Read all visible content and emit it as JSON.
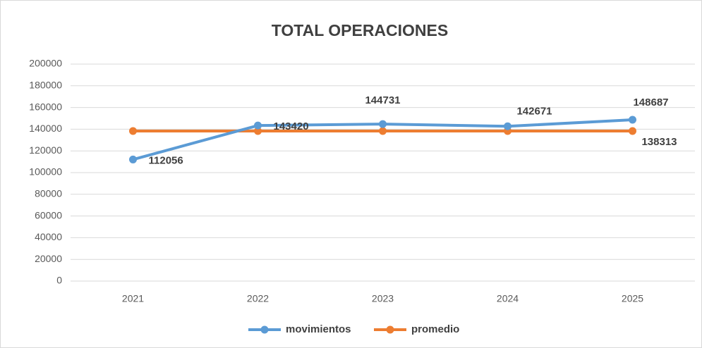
{
  "chart_data": {
    "type": "line",
    "title": "TOTAL OPERACIONES",
    "categories": [
      "2021",
      "2022",
      "2023",
      "2024",
      "2025"
    ],
    "series": [
      {
        "name": "movimientos",
        "color": "#5b9bd5",
        "values": [
          112056,
          143420,
          144731,
          142671,
          148687
        ]
      },
      {
        "name": "promedio",
        "color": "#ed7d31",
        "values": [
          138313,
          138313,
          138313,
          138313,
          138313
        ],
        "value_labels": [
          null,
          null,
          null,
          null,
          "138313"
        ]
      }
    ],
    "ylim": [
      0,
      200000
    ],
    "yticks": [
      0,
      20000,
      40000,
      60000,
      80000,
      100000,
      120000,
      140000,
      160000,
      180000,
      200000
    ],
    "grid": true,
    "legend": "bottom"
  }
}
